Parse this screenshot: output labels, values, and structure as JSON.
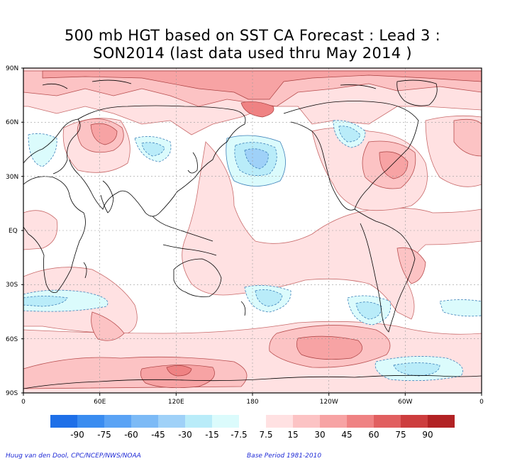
{
  "title": {
    "line1": "500 mb HGT based on SST CA Forecast : Lead 3 :",
    "line2": "SON2014 (last data used thru May 2014 )"
  },
  "map": {
    "lat_labels": [
      "90N",
      "60N",
      "30N",
      "EQ",
      "30S",
      "60S",
      "90S"
    ],
    "lon_labels": [
      "0",
      "60E",
      "120E",
      "180",
      "120W",
      "60W",
      "0"
    ]
  },
  "colorbar": {
    "labels": [
      "-90",
      "-75",
      "-60",
      "-45",
      "-30",
      "-15",
      "-7.5",
      "7.5",
      "15",
      "30",
      "45",
      "60",
      "75",
      "90"
    ],
    "colors": [
      "#1e6fe8",
      "#3a8cf0",
      "#5aa3f5",
      "#7cbaf6",
      "#9fd1f8",
      "#b9ecf9",
      "#dbfbfc",
      "#ffffff",
      "#ffe1e2",
      "#fcc3c4",
      "#f7a3a4",
      "#ef8283",
      "#e15f60",
      "#cd3d3e",
      "#b22224"
    ]
  },
  "footer": {
    "credit": "Huug van den Dool, CPC/NCEP/NWS/NOAA",
    "base_period": "Base Period 1981-2010"
  }
}
